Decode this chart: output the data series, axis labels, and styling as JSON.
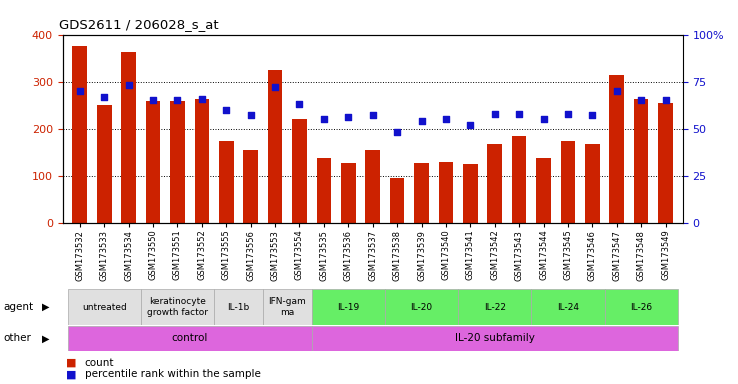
{
  "title": "GDS2611 / 206028_s_at",
  "samples": [
    "GSM173532",
    "GSM173533",
    "GSM173534",
    "GSM173550",
    "GSM173551",
    "GSM173552",
    "GSM173555",
    "GSM173556",
    "GSM173553",
    "GSM173554",
    "GSM173535",
    "GSM173536",
    "GSM173537",
    "GSM173538",
    "GSM173539",
    "GSM173540",
    "GSM173541",
    "GSM173542",
    "GSM173543",
    "GSM173544",
    "GSM173545",
    "GSM173546",
    "GSM173547",
    "GSM173548",
    "GSM173549"
  ],
  "counts": [
    375,
    250,
    362,
    258,
    258,
    263,
    173,
    155,
    325,
    220,
    137,
    128,
    155,
    95,
    128,
    130,
    125,
    168,
    185,
    137,
    173,
    168,
    315,
    263,
    255
  ],
  "percentiles": [
    70,
    67,
    73,
    65,
    65,
    66,
    60,
    57,
    72,
    63,
    55,
    56,
    57,
    48,
    54,
    55,
    52,
    58,
    58,
    55,
    58,
    57,
    70,
    65,
    65
  ],
  "bar_color": "#cc2200",
  "dot_color": "#1111cc",
  "ylim_left": [
    0,
    400
  ],
  "ylim_right": [
    0,
    100
  ],
  "yticks_left": [
    0,
    100,
    200,
    300,
    400
  ],
  "yticks_right": [
    0,
    25,
    50,
    75,
    100
  ],
  "ytick_labels_right": [
    "0",
    "25",
    "50",
    "75",
    "100%"
  ],
  "agent_groups": [
    {
      "label": "untreated",
      "start": 0,
      "end": 2,
      "color": "#e0e0e0"
    },
    {
      "label": "keratinocyte\ngrowth factor",
      "start": 3,
      "end": 5,
      "color": "#e0e0e0"
    },
    {
      "label": "IL-1b",
      "start": 6,
      "end": 7,
      "color": "#e0e0e0"
    },
    {
      "label": "IFN-gam\nma",
      "start": 8,
      "end": 9,
      "color": "#e0e0e0"
    },
    {
      "label": "IL-19",
      "start": 10,
      "end": 12,
      "color": "#66ee66"
    },
    {
      "label": "IL-20",
      "start": 13,
      "end": 15,
      "color": "#66ee66"
    },
    {
      "label": "IL-22",
      "start": 16,
      "end": 18,
      "color": "#66ee66"
    },
    {
      "label": "IL-24",
      "start": 19,
      "end": 21,
      "color": "#66ee66"
    },
    {
      "label": "IL-26",
      "start": 22,
      "end": 24,
      "color": "#66ee66"
    }
  ],
  "other_groups": [
    {
      "label": "control",
      "start": 0,
      "end": 9,
      "color": "#dd66dd"
    },
    {
      "label": "IL-20 subfamily",
      "start": 10,
      "end": 24,
      "color": "#dd66dd"
    }
  ],
  "tick_label_color_left": "#cc2200",
  "tick_label_color_right": "#1111cc",
  "legend_items": [
    {
      "color": "#cc2200",
      "label": "count"
    },
    {
      "color": "#1111cc",
      "label": "percentile rank within the sample"
    }
  ]
}
